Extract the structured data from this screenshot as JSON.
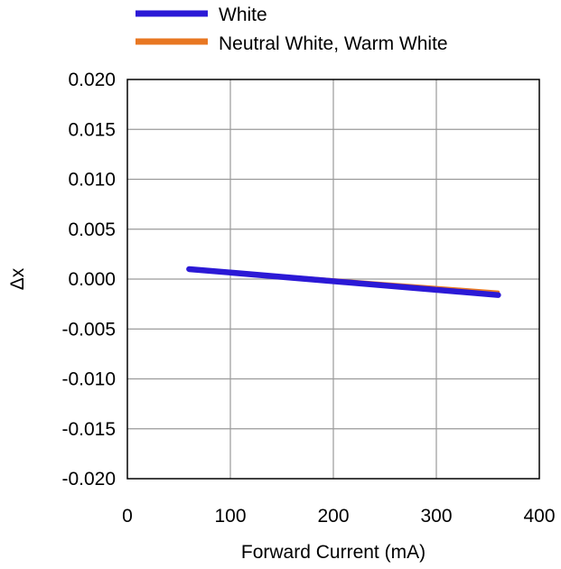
{
  "chart_data": {
    "type": "line",
    "xlabel": "Forward Current (mA)",
    "ylabel": "Δx",
    "xlim": [
      0,
      400
    ],
    "ylim": [
      -0.02,
      0.02
    ],
    "xticks": [
      0,
      100,
      200,
      300,
      400
    ],
    "xtick_labels": [
      "0",
      "100",
      "200",
      "300",
      "400"
    ],
    "yticks": [
      0.02,
      0.015,
      0.01,
      0.005,
      0,
      -0.005,
      -0.01,
      -0.015,
      -0.02
    ],
    "ytick_labels": [
      "0.020",
      "0.015",
      "0.010",
      "0.005",
      "0.000",
      "-0.005",
      "-0.010",
      "-0.015",
      "-0.020"
    ],
    "grid": true,
    "legend_position": "top",
    "series": [
      {
        "name": "Neutral White, Warm White",
        "color": "#e87722",
        "x": [
          60,
          360
        ],
        "y": [
          0.001,
          -0.0013
        ]
      },
      {
        "name": "White",
        "color": "#2b19d6",
        "x": [
          60,
          360
        ],
        "y": [
          0.001,
          -0.0016
        ]
      }
    ]
  }
}
